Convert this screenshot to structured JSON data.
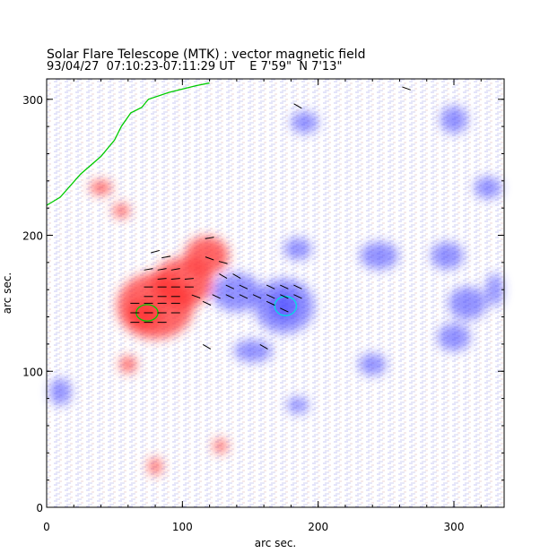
{
  "figure": {
    "title": "Solar Flare Telescope (MTK) : vector magnetic field",
    "time_range": "93/04/27  07:10:23-07:11:29 UT",
    "position": "E 7'59\"  N 7'13\""
  },
  "axes": {
    "x": {
      "label": "arc sec.",
      "range": [
        0,
        337
      ],
      "ticks": [
        0,
        100,
        200,
        300
      ]
    },
    "y": {
      "label": "arc sec.",
      "range": [
        0,
        315
      ],
      "ticks": [
        0,
        100,
        200,
        300
      ]
    }
  },
  "colors": {
    "positive_polarity": "#ff3030",
    "negative_polarity": "#3a3aff",
    "contour": "#00cc00",
    "inner_contour": "#00e0e0",
    "frame": "#000000",
    "vectors": "#000000"
  },
  "chart_data": {
    "type": "heatmap",
    "title": "Solar Flare Telescope (MTK) : vector magnetic field",
    "xlabel": "arc sec.",
    "ylabel": "arc sec.",
    "xlim": [
      0,
      337
    ],
    "ylim": [
      0,
      315
    ],
    "positive_regions": [
      {
        "x": 80,
        "y": 148,
        "rx": 28,
        "ry": 24
      },
      {
        "x": 100,
        "y": 165,
        "rx": 22,
        "ry": 18
      },
      {
        "x": 118,
        "y": 185,
        "rx": 16,
        "ry": 14
      },
      {
        "x": 72,
        "y": 142,
        "rx": 12,
        "ry": 10
      },
      {
        "x": 60,
        "y": 105,
        "rx": 6,
        "ry": 6
      },
      {
        "x": 55,
        "y": 218,
        "rx": 6,
        "ry": 5
      },
      {
        "x": 40,
        "y": 235,
        "rx": 8,
        "ry": 5
      },
      {
        "x": 128,
        "y": 45,
        "rx": 5,
        "ry": 5
      },
      {
        "x": 80,
        "y": 30,
        "rx": 5,
        "ry": 6
      }
    ],
    "negative_regions": [
      {
        "x": 175,
        "y": 148,
        "rx": 22,
        "ry": 20
      },
      {
        "x": 140,
        "y": 158,
        "rx": 18,
        "ry": 14
      },
      {
        "x": 175,
        "y": 148,
        "rx": 10,
        "ry": 10
      },
      {
        "x": 152,
        "y": 115,
        "rx": 14,
        "ry": 8
      },
      {
        "x": 185,
        "y": 190,
        "rx": 10,
        "ry": 8
      },
      {
        "x": 190,
        "y": 283,
        "rx": 10,
        "ry": 8
      },
      {
        "x": 300,
        "y": 285,
        "rx": 10,
        "ry": 10
      },
      {
        "x": 325,
        "y": 235,
        "rx": 10,
        "ry": 8
      },
      {
        "x": 245,
        "y": 185,
        "rx": 14,
        "ry": 10
      },
      {
        "x": 295,
        "y": 185,
        "rx": 12,
        "ry": 10
      },
      {
        "x": 310,
        "y": 150,
        "rx": 14,
        "ry": 12
      },
      {
        "x": 300,
        "y": 125,
        "rx": 12,
        "ry": 10
      },
      {
        "x": 240,
        "y": 105,
        "rx": 10,
        "ry": 8
      },
      {
        "x": 185,
        "y": 75,
        "rx": 8,
        "ry": 6
      },
      {
        "x": 10,
        "y": 85,
        "rx": 8,
        "ry": 10
      },
      {
        "x": 330,
        "y": 160,
        "rx": 6,
        "ry": 12
      }
    ],
    "green_contour": [
      [
        0,
        222
      ],
      [
        10,
        228
      ],
      [
        25,
        245
      ],
      [
        40,
        258
      ],
      [
        50,
        270
      ],
      [
        55,
        280
      ],
      [
        62,
        290
      ],
      [
        70,
        294
      ],
      [
        75,
        300
      ],
      [
        90,
        305
      ],
      [
        110,
        310
      ],
      [
        120,
        312
      ]
    ],
    "spot_contours": [
      {
        "x": 74,
        "y": 143,
        "rx": 8,
        "ry": 6,
        "color": "green"
      },
      {
        "x": 176,
        "y": 148,
        "rx": 8,
        "ry": 7,
        "color": "cyan"
      }
    ],
    "vectors": [
      {
        "x": 80,
        "y": 188,
        "angle": 15
      },
      {
        "x": 88,
        "y": 184,
        "angle": 10
      },
      {
        "x": 75,
        "y": 175,
        "angle": 10
      },
      {
        "x": 85,
        "y": 175,
        "angle": 10
      },
      {
        "x": 95,
        "y": 175,
        "angle": 10
      },
      {
        "x": 85,
        "y": 168,
        "angle": 5
      },
      {
        "x": 95,
        "y": 168,
        "angle": 5
      },
      {
        "x": 105,
        "y": 168,
        "angle": 5
      },
      {
        "x": 75,
        "y": 162,
        "angle": 0
      },
      {
        "x": 85,
        "y": 162,
        "angle": 0
      },
      {
        "x": 95,
        "y": 162,
        "angle": 0
      },
      {
        "x": 105,
        "y": 162,
        "angle": 0
      },
      {
        "x": 75,
        "y": 155,
        "angle": 0
      },
      {
        "x": 85,
        "y": 155,
        "angle": 0
      },
      {
        "x": 95,
        "y": 155,
        "angle": 0
      },
      {
        "x": 65,
        "y": 150,
        "angle": 0
      },
      {
        "x": 75,
        "y": 150,
        "angle": 0
      },
      {
        "x": 85,
        "y": 150,
        "angle": 0
      },
      {
        "x": 95,
        "y": 150,
        "angle": 0
      },
      {
        "x": 65,
        "y": 143,
        "angle": 0
      },
      {
        "x": 75,
        "y": 143,
        "angle": 0
      },
      {
        "x": 85,
        "y": 143,
        "angle": 0
      },
      {
        "x": 95,
        "y": 143,
        "angle": 0
      },
      {
        "x": 65,
        "y": 136,
        "angle": 0
      },
      {
        "x": 75,
        "y": 136,
        "angle": 0
      },
      {
        "x": 85,
        "y": 136,
        "angle": 0
      },
      {
        "x": 110,
        "y": 155,
        "angle": -20
      },
      {
        "x": 118,
        "y": 150,
        "angle": -25
      },
      {
        "x": 125,
        "y": 155,
        "angle": -25
      },
      {
        "x": 135,
        "y": 155,
        "angle": -25
      },
      {
        "x": 145,
        "y": 155,
        "angle": -25
      },
      {
        "x": 135,
        "y": 162,
        "angle": -25
      },
      {
        "x": 145,
        "y": 162,
        "angle": -25
      },
      {
        "x": 130,
        "y": 170,
        "angle": -30
      },
      {
        "x": 140,
        "y": 170,
        "angle": -30
      },
      {
        "x": 155,
        "y": 155,
        "angle": -25
      },
      {
        "x": 165,
        "y": 155,
        "angle": -25
      },
      {
        "x": 175,
        "y": 155,
        "angle": -25
      },
      {
        "x": 185,
        "y": 155,
        "angle": -25
      },
      {
        "x": 165,
        "y": 162,
        "angle": -25
      },
      {
        "x": 175,
        "y": 162,
        "angle": -25
      },
      {
        "x": 185,
        "y": 162,
        "angle": -25
      },
      {
        "x": 165,
        "y": 150,
        "angle": -25
      },
      {
        "x": 175,
        "y": 145,
        "angle": -25
      },
      {
        "x": 120,
        "y": 183,
        "angle": -20
      },
      {
        "x": 130,
        "y": 180,
        "angle": -15
      },
      {
        "x": 185,
        "y": 295,
        "angle": -30
      },
      {
        "x": 265,
        "y": 308,
        "angle": -20
      },
      {
        "x": 118,
        "y": 118,
        "angle": -30
      },
      {
        "x": 160,
        "y": 118,
        "angle": -30
      },
      {
        "x": 120,
        "y": 198,
        "angle": 10
      }
    ]
  }
}
